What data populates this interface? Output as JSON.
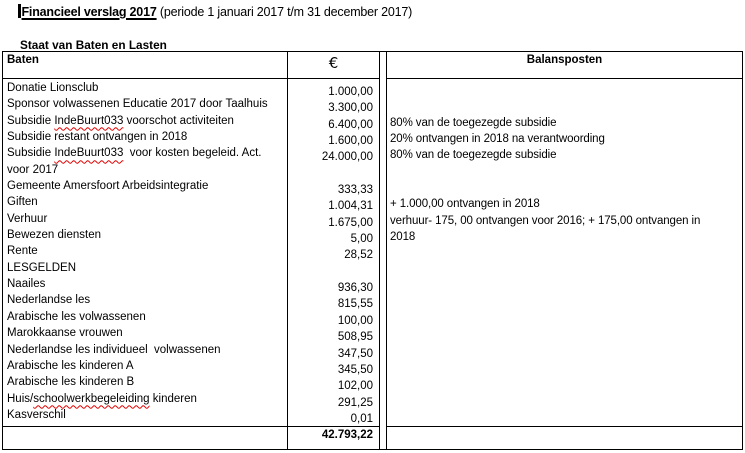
{
  "title": {
    "emphasis": "Financieel verslag 2017",
    "rest": " (periode 1 januari 2017 t/m 31 december 2017)"
  },
  "subtitle": "Staat van Baten en Lasten",
  "table": {
    "header": {
      "baten": "Baten",
      "euro": "€",
      "balansposten": "Balansposten"
    },
    "rows": [
      {
        "label": "Donatie Lionsclub",
        "amount": "1.000,00",
        "note": ""
      },
      {
        "label": "Sponsor volwassenen Educatie 2017 door Taalhuis",
        "amount": "3.300,00",
        "note": ""
      },
      {
        "label": "Subsidie IndeBuurt033 voorschot activiteiten",
        "spell": "IndeBuurt033",
        "amount": "6.400,00",
        "note": "80% van de toegezegde subsidie"
      },
      {
        "label": "Subsidie restant ontvangen in 2018",
        "amount": "1.600,00",
        "note": "20% ontvangen in 2018 na verantwoording"
      },
      {
        "label": "Subsidie IndeBuurt033  voor kosten begeleid. Act.",
        "spell": "IndeBuurt033",
        "amount": "24.000,00",
        "note": "80% van de toegezegde subsidie"
      },
      {
        "label": "voor 2017",
        "amount": "",
        "note": ""
      },
      {
        "label": "Gemeente Amersfoort Arbeidsintegratie",
        "amount": "333,33",
        "note": ""
      },
      {
        "label": "Giften",
        "amount": "1.004,31",
        "note": "+ 1.000,00 ontvangen in 2018"
      },
      {
        "label": "Verhuur",
        "amount": "1.675,00",
        "note": "verhuur- 175, 00 ontvangen voor 2016; + 175,00 ontvangen in"
      },
      {
        "label": "Bewezen diensten",
        "amount": "5,00",
        "note": "2018"
      },
      {
        "label": "Rente",
        "amount": "28,52",
        "note": ""
      },
      {
        "label": "LESGELDEN",
        "amount": "",
        "note": ""
      },
      {
        "label": "Naailes",
        "amount": "936,30",
        "note": ""
      },
      {
        "label": "Nederlandse les",
        "amount": "815,55",
        "note": ""
      },
      {
        "label": "Arabische les volwassenen",
        "amount": "100,00",
        "note": ""
      },
      {
        "label": "Marokkaanse vrouwen",
        "amount": "508,95",
        "note": ""
      },
      {
        "label": "Nederlandse les individueel  volwassenen",
        "amount": "347,50",
        "note": ""
      },
      {
        "label": "Arabische les kinderen A",
        "amount": "345,50",
        "note": ""
      },
      {
        "label": "Arabische les kinderen B",
        "amount": "102,00",
        "note": ""
      },
      {
        "label": "Huis/schoolwerkbegeleiding kinderen",
        "spell": "schoolwerkbegeleiding",
        "amount": "291,25",
        "note": ""
      },
      {
        "label": "Kasverschil",
        "amount": "0,01",
        "note": ""
      }
    ],
    "total": "42.793,22"
  },
  "colors": {
    "spellcheck_underline": "#e00000",
    "text": "#000000",
    "background": "#ffffff"
  }
}
